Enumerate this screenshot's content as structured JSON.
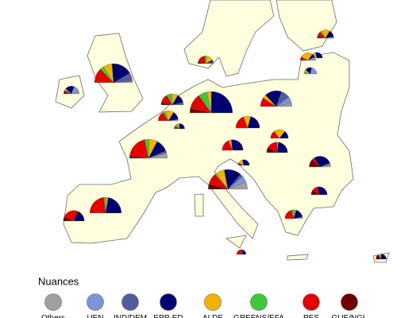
{
  "legend": {
    "title": "Nuances",
    "items": [
      {
        "label": "Others",
        "color": "#a0a0a0"
      },
      {
        "label": "UEN",
        "color": "#7b96d6"
      },
      {
        "label": "IND/DEM",
        "color": "#505c9e"
      },
      {
        "label": "EPP-ED",
        "color": "#000070"
      },
      {
        "label": "ALDE",
        "color": "#f0b400"
      },
      {
        "label": "GREENS/EFA",
        "color": "#3cc83c"
      },
      {
        "label": "PES",
        "color": "#e60000"
      },
      {
        "label": "GUE/NGL",
        "color": "#700000"
      }
    ]
  },
  "pies": [
    {
      "values": [
        2,
        0,
        11,
        28,
        12,
        5,
        19,
        1
      ]
    },
    {
      "values": [
        1,
        4,
        0,
        5,
        1,
        0,
        1,
        1
      ]
    },
    {
      "values": [
        7,
        0,
        3,
        17,
        11,
        6,
        31,
        3
      ]
    },
    {
      "values": [
        0,
        0,
        0,
        24,
        2,
        3,
        24,
        1
      ]
    },
    {
      "values": [
        0,
        0,
        0,
        9,
        0,
        0,
        12,
        3
      ]
    },
    {
      "values": [
        0,
        0,
        0,
        49,
        7,
        13,
        23,
        7
      ]
    },
    {
      "values": [
        10,
        9,
        4,
        24,
        12,
        2,
        16,
        7
      ]
    },
    {
      "values": [
        4,
        7,
        10,
        19,
        4,
        0,
        10,
        0
      ]
    },
    {
      "values": [
        0,
        0,
        2,
        7,
        5,
        4,
        7,
        2
      ]
    },
    {
      "values": [
        1,
        0,
        0,
        6,
        6,
        2,
        7,
        0
      ]
    },
    {
      "values": [
        0,
        0,
        0,
        3,
        1,
        1,
        1,
        0
      ]
    },
    {
      "values": [
        0,
        0,
        1,
        1,
        4,
        1,
        5,
        1
      ]
    },
    {
      "values": [
        0,
        0,
        1,
        4,
        5,
        1,
        3,
        1
      ]
    },
    {
      "values": [
        0,
        0,
        0,
        4,
        3,
        0,
        0,
        0
      ]
    },
    {
      "values": [
        0,
        4,
        0,
        3,
        1,
        1,
        0,
        0
      ]
    },
    {
      "values": [
        0,
        2,
        0,
        2,
        7,
        0,
        2,
        0
      ]
    },
    {
      "values": [
        2,
        0,
        1,
        14,
        0,
        0,
        2,
        6
      ]
    },
    {
      "values": [
        0,
        0,
        0,
        8,
        0,
        0,
        3,
        3
      ]
    },
    {
      "values": [
        1,
        0,
        0,
        6,
        1,
        2,
        7,
        0
      ]
    },
    {
      "values": [
        0,
        0,
        0,
        13,
        2,
        0,
        9,
        0
      ]
    },
    {
      "values": [
        0,
        0,
        0,
        4,
        2,
        0,
        1,
        0
      ]
    },
    {
      "values": [
        0,
        0,
        0,
        13,
        6,
        0,
        12,
        0
      ]
    },
    {
      "values": [
        0,
        0,
        0,
        5,
        7,
        0,
        5,
        0
      ]
    },
    {
      "values": [
        0,
        0,
        0,
        11,
        1,
        0,
        8,
        4
      ]
    },
    {
      "values": [
        0,
        0,
        0,
        2,
        0,
        0,
        3,
        0
      ]
    },
    {
      "values": [
        0,
        0,
        0,
        3,
        1,
        0,
        0,
        2
      ]
    }
  ]
}
